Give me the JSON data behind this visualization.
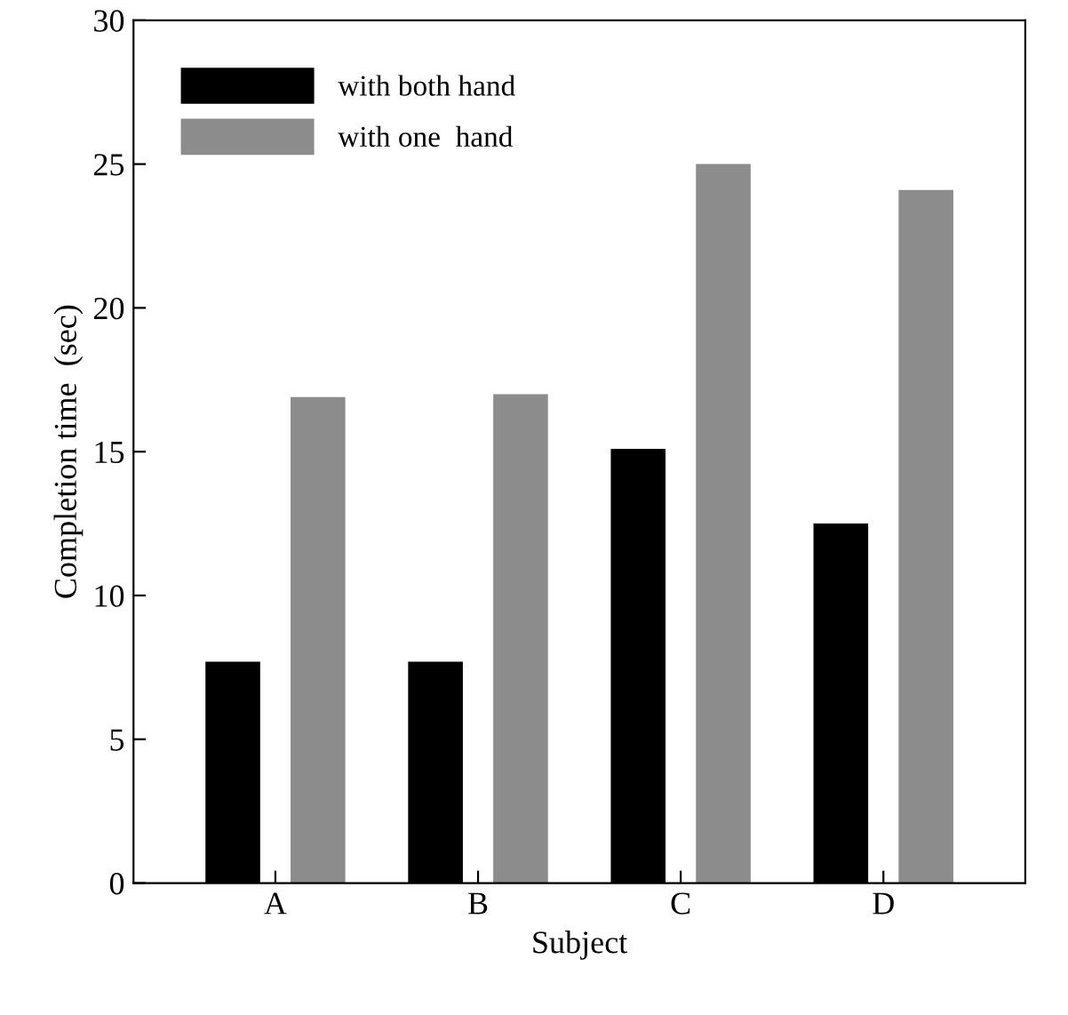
{
  "chart_data": {
    "type": "bar",
    "xlabel": "Subject",
    "ylabel": "Completion time  (sec)",
    "categories": [
      "A",
      "B",
      "C",
      "D"
    ],
    "series": [
      {
        "name": "with both hand",
        "color": "#000000",
        "values": [
          7.7,
          7.7,
          15.1,
          12.5
        ]
      },
      {
        "name": "with one  hand",
        "color": "#8c8c8c",
        "values": [
          16.9,
          17.0,
          25.0,
          24.1
        ]
      }
    ],
    "ylim": [
      0,
      30
    ],
    "yticks": [
      0,
      5,
      10,
      15,
      20,
      25,
      30
    ],
    "grid": false,
    "legend": "top left"
  }
}
